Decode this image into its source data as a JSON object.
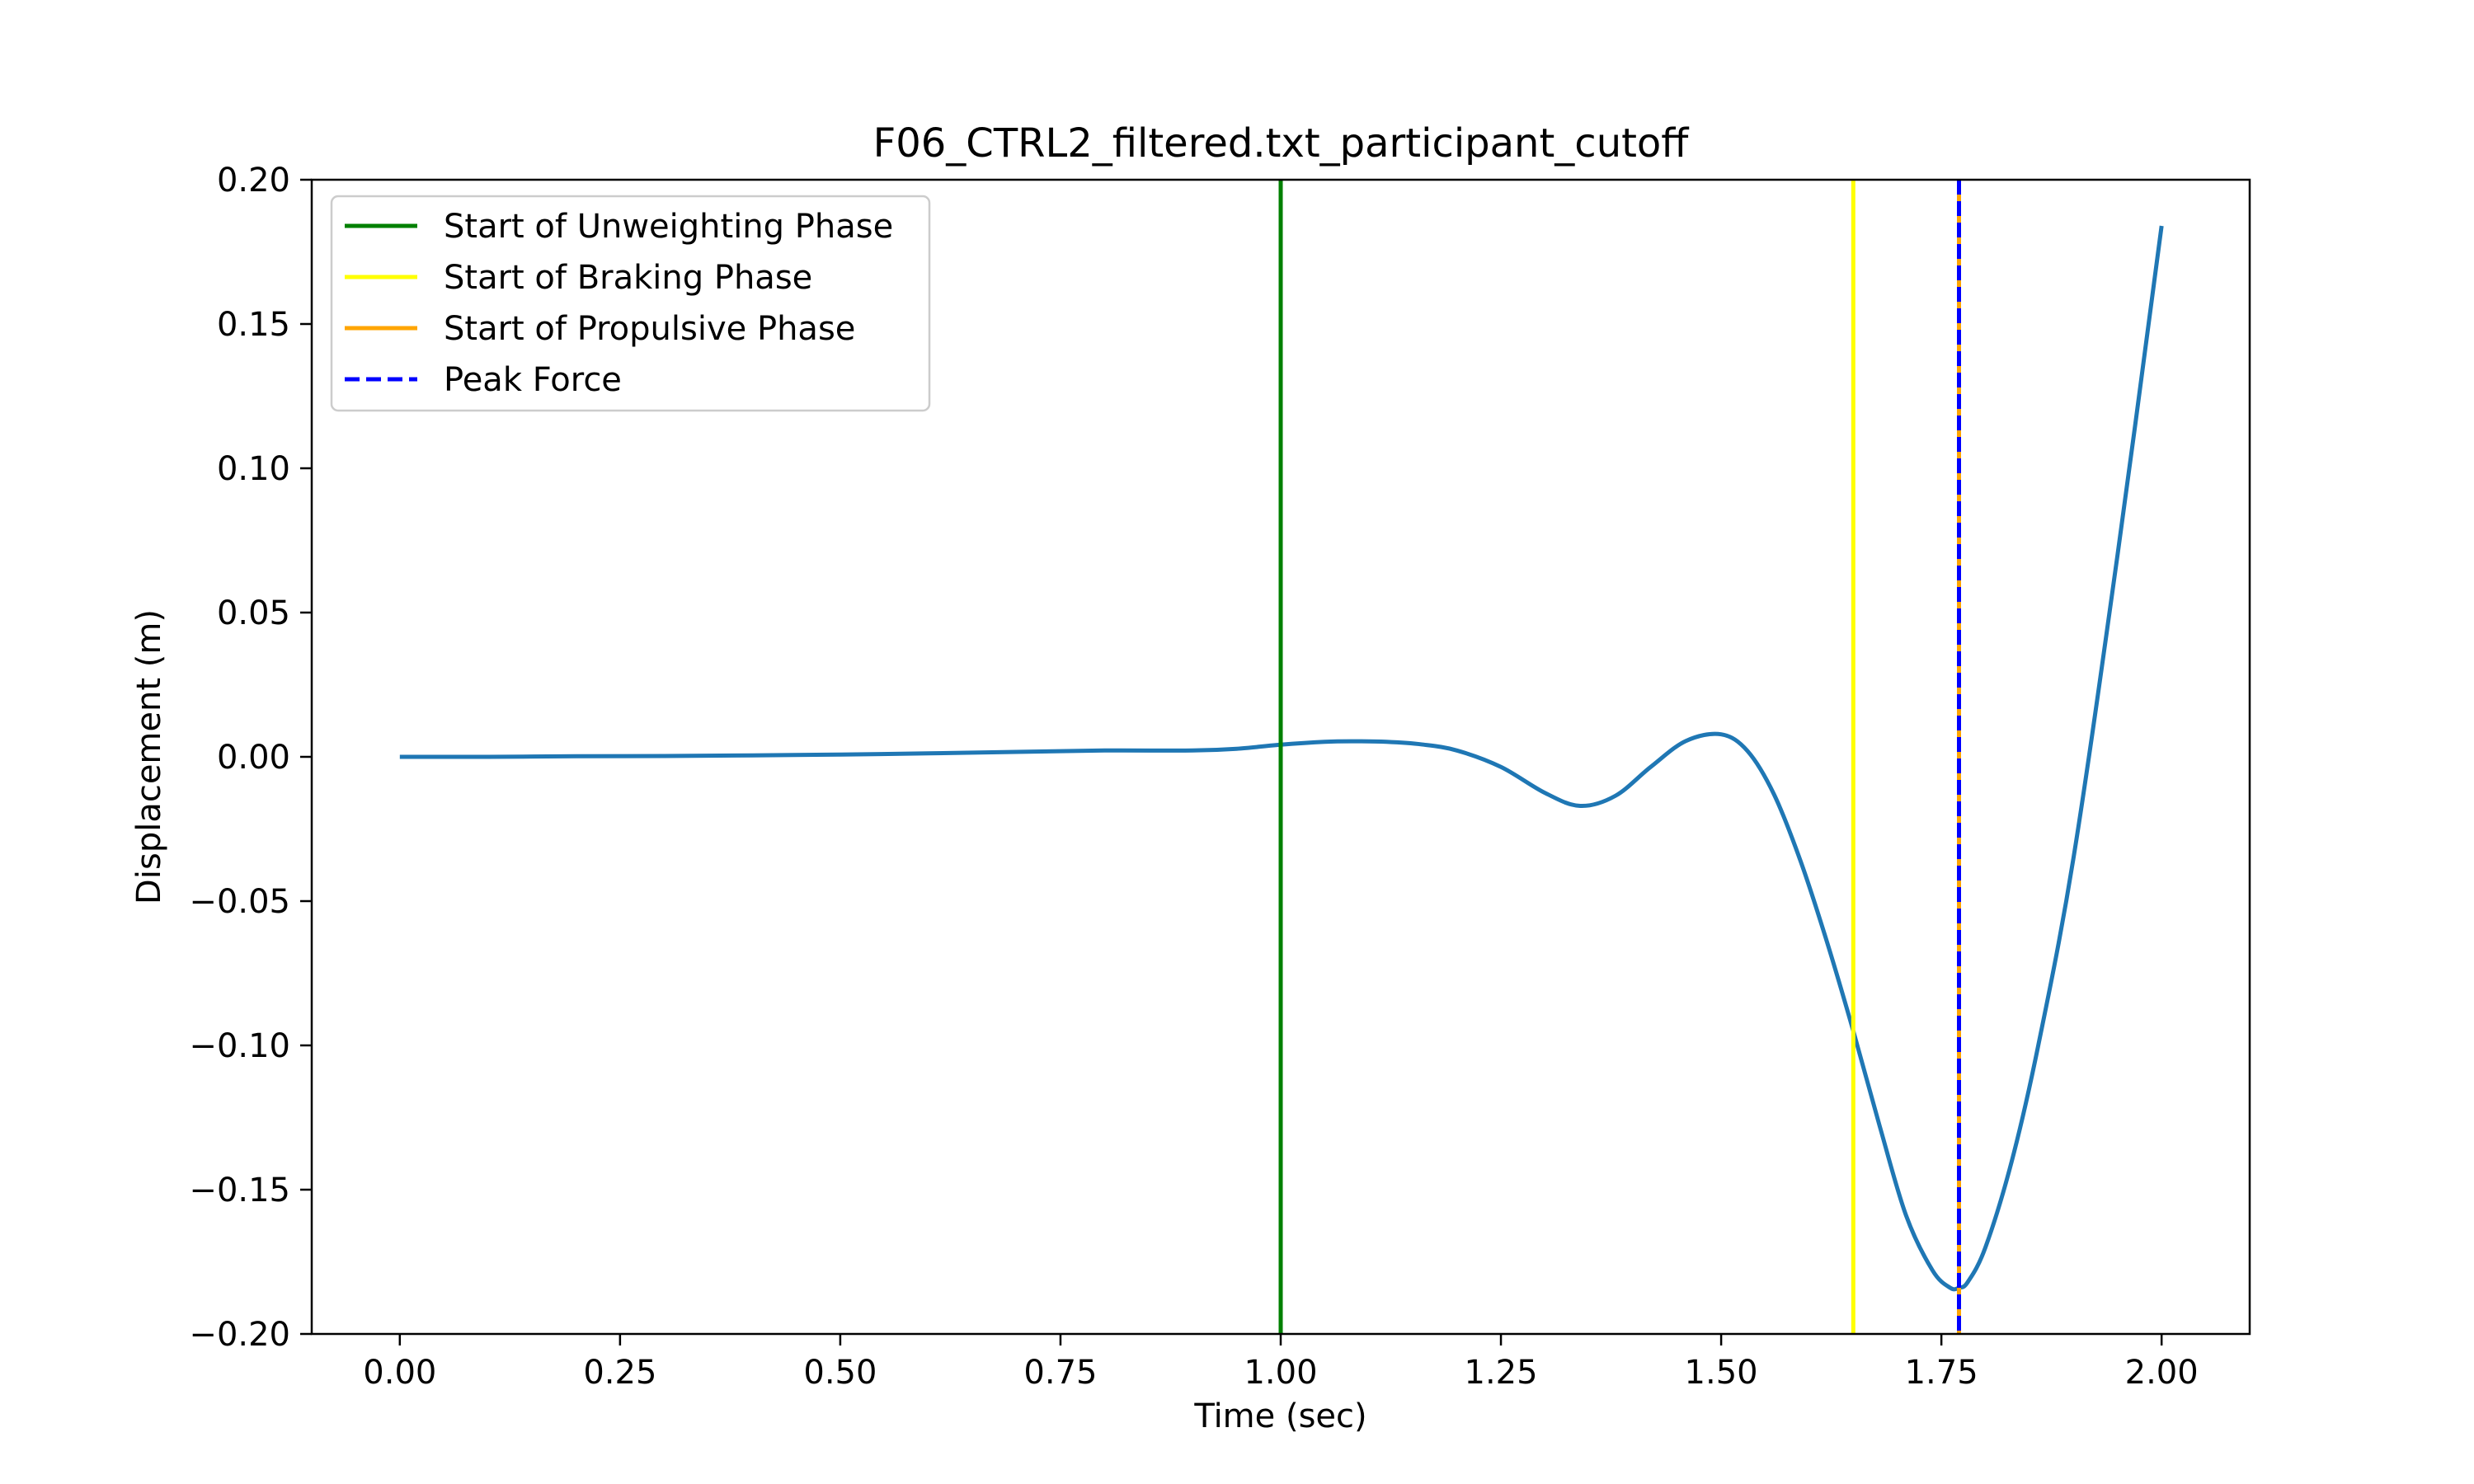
{
  "chart_data": {
    "type": "line",
    "title": "F06_CTRL2_filtered.txt_participant_cutoff",
    "xlabel": "Time (sec)",
    "ylabel": "Displacement (m)",
    "xlim": [
      -0.1,
      2.1
    ],
    "ylim": [
      -0.2,
      0.2
    ],
    "xticks": [
      0.0,
      0.25,
      0.5,
      0.75,
      1.0,
      1.25,
      1.5,
      1.75,
      2.0
    ],
    "xtick_labels": [
      "0.00",
      "0.25",
      "0.50",
      "0.75",
      "1.00",
      "1.25",
      "1.50",
      "1.75",
      "2.00"
    ],
    "yticks": [
      -0.2,
      -0.15,
      -0.1,
      -0.05,
      0.0,
      0.05,
      0.1,
      0.15,
      0.2
    ],
    "ytick_labels": [
      "−0.20",
      "−0.15",
      "−0.10",
      "−0.05",
      "0.00",
      "0.05",
      "0.10",
      "0.15",
      "0.20"
    ],
    "grid": false,
    "legend_position": "top-left",
    "series": [
      {
        "color": "#1f77b4",
        "x": [
          0.0,
          0.1,
          0.2,
          0.3,
          0.4,
          0.5,
          0.6,
          0.7,
          0.8,
          0.9,
          0.95,
          1.0,
          1.05,
          1.08,
          1.12,
          1.16,
          1.2,
          1.25,
          1.3,
          1.34,
          1.38,
          1.42,
          1.46,
          1.5,
          1.53,
          1.56,
          1.59,
          1.62,
          1.65,
          1.68,
          1.71,
          1.74,
          1.76,
          1.77,
          1.78,
          1.8,
          1.83,
          1.86,
          1.9,
          1.95,
          2.0
        ],
        "y": [
          0.0,
          0.0,
          0.0002,
          0.0003,
          0.0005,
          0.0008,
          0.0012,
          0.0017,
          0.0022,
          0.0022,
          0.0028,
          0.0042,
          0.0052,
          0.0054,
          0.0052,
          0.0043,
          0.0022,
          -0.0035,
          -0.0125,
          -0.017,
          -0.0135,
          -0.0035,
          0.0055,
          0.0078,
          0.002,
          -0.013,
          -0.036,
          -0.064,
          -0.095,
          -0.128,
          -0.159,
          -0.178,
          -0.184,
          -0.184,
          -0.182,
          -0.17,
          -0.14,
          -0.1,
          -0.035,
          0.07,
          0.184
        ]
      }
    ],
    "vlines": [
      {
        "name": "Start of Unweighting Phase",
        "x": 1.0,
        "color": "#008000",
        "style": "solid"
      },
      {
        "name": "Start of Braking Phase",
        "x": 1.65,
        "color": "#ffff00",
        "style": "solid"
      },
      {
        "name": "Start of Propulsive Phase",
        "x": 1.77,
        "color": "#ffa500",
        "style": "solid"
      },
      {
        "name": "Peak Force",
        "x": 1.77,
        "color": "#0000ff",
        "style": "dashed"
      }
    ]
  }
}
